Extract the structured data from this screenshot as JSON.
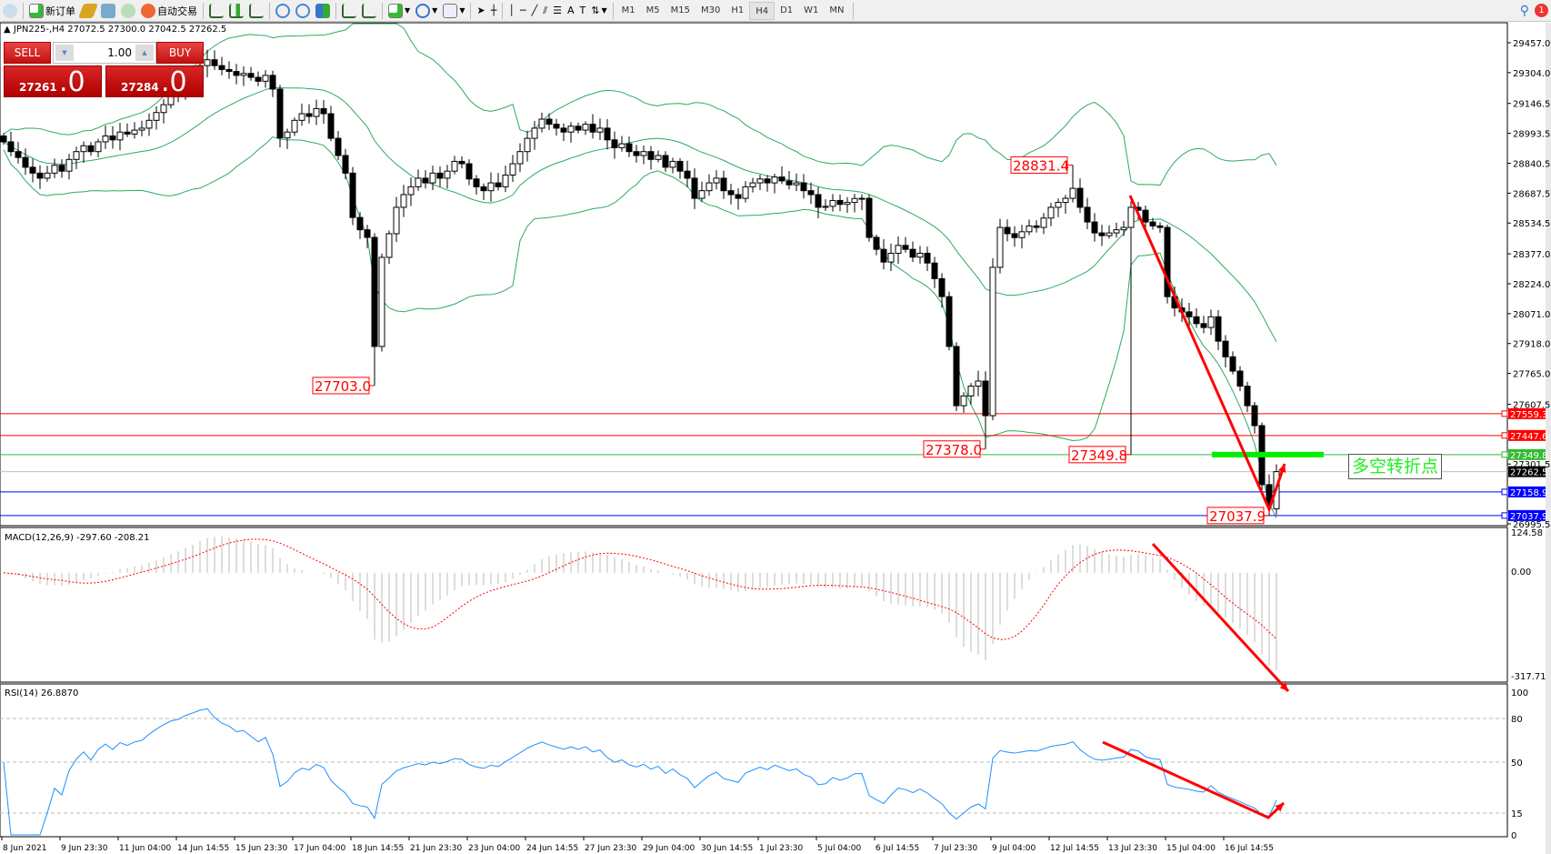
{
  "toolbar": {
    "new_order": "新订单",
    "auto_trading": "自动交易",
    "timeframes": [
      "M1",
      "M5",
      "M15",
      "M30",
      "H1",
      "H4",
      "D1",
      "W1",
      "MN"
    ],
    "active_timeframe": "H4",
    "notification_count": "1"
  },
  "chart_header": "JPN225-,H4  27072.5 27300.0 27042.5 27262.5",
  "trade_panel": {
    "sell_label": "SELL",
    "buy_label": "BUY",
    "lot": "1.00",
    "sell_price_main": "27261",
    "sell_price_frac": ".0",
    "buy_price_main": "27284",
    "buy_price_frac": ".0"
  },
  "colors": {
    "bull": "#ffffff",
    "bear": "#000000",
    "bands": "#2eaa5e",
    "rsi": "#1e90ff",
    "macd_hist": "#bbbbbb",
    "macd_signal": "#ff0000",
    "annotation": "#ff0000"
  },
  "chart_data": {
    "type": "candlestick",
    "symbol": "JPN225-",
    "timeframe": "H4",
    "last_bar": {
      "open": 27072.5,
      "high": 27300.0,
      "low": 27042.5,
      "close": 27262.5
    },
    "closes": [
      28950,
      28900,
      28870,
      28820,
      28790,
      28764,
      28790,
      28830,
      28800,
      28860,
      28900,
      28930,
      28900,
      28950,
      28980,
      28960,
      29000,
      28990,
      29010,
      29020,
      29060,
      29100,
      29140,
      29180,
      29200,
      29250,
      29290,
      29340,
      29370,
      29340,
      29320,
      29310,
      29290,
      29300,
      29280,
      29260,
      29290,
      29220,
      28970,
      29000,
      29060,
      29094,
      29080,
      29120,
      29094,
      28968,
      28880,
      28790,
      28563,
      28500,
      28461,
      27903,
      28359,
      28480,
      28615,
      28680,
      28720,
      28764,
      28740,
      28790,
      28764,
      28800,
      28850,
      28838,
      28760,
      28720,
      28700,
      28740,
      28720,
      28780,
      28838,
      28900,
      28968,
      29020,
      29066,
      29040,
      29020,
      29000,
      29030,
      29010,
      29040,
      29000,
      29020,
      28960,
      28920,
      28940,
      28900,
      28880,
      28900,
      28860,
      28880,
      28820,
      28850,
      28800,
      28764,
      28661,
      28700,
      28740,
      28764,
      28700,
      28680,
      28661,
      28720,
      28740,
      28760,
      28740,
      28770,
      28750,
      28730,
      28740,
      28700,
      28680,
      28615,
      28620,
      28650,
      28630,
      28640,
      28660,
      28661,
      28461,
      28400,
      28335,
      28380,
      28420,
      28400,
      28360,
      28380,
      28330,
      28250,
      28158,
      27903,
      27600,
      27650,
      27700,
      27726,
      27549,
      28308,
      28512,
      28480,
      28460,
      28490,
      28520,
      28512,
      28560,
      28615,
      28640,
      28661,
      28712,
      28615,
      28540,
      28484,
      28470,
      28484,
      28500,
      28512,
      28615,
      28600,
      28540,
      28520,
      28512,
      28158,
      28100,
      28080,
      28055,
      28020,
      28000,
      28055,
      27930,
      27850,
      27777,
      27700,
      27600,
      27498,
      27196,
      27093,
      27262.5
    ],
    "price_axis_ticks": [
      "29457.0",
      "29304.0",
      "29146.5",
      "28993.5",
      "28840.5",
      "28687.5",
      "28534.5",
      "28377.0",
      "28224.0",
      "28071.0",
      "27918.0",
      "27765.0",
      "27607.5",
      "27301.5",
      "26995.5"
    ],
    "time_axis_labels": [
      "8 Jun 2021",
      "9 Jun 23:30",
      "11 Jun 04:00",
      "14 Jun 14:55",
      "15 Jun 23:30",
      "17 Jun 04:00",
      "18 Jun 14:55",
      "21 Jun 23:30",
      "23 Jun 04:00",
      "24 Jun 14:55",
      "27 Jun 23:30",
      "29 Jun 04:00",
      "30 Jun 14:55",
      "1 Jul 23:30",
      "5 Jul 04:00",
      "6 Jul 14:55",
      "7 Jul 23:30",
      "9 Jul 04:00",
      "12 Jul 14:55",
      "13 Jul 23:30",
      "15 Jul 04:00",
      "16 Jul 14:55"
    ],
    "price_labels": [
      {
        "text": "27703.0",
        "value": 27703.0,
        "bar": 51
      },
      {
        "text": "27378.0",
        "value": 27378.0,
        "bar": 135
      },
      {
        "text": "28831.4",
        "value": 28831.4,
        "bar": 147
      },
      {
        "text": "27349.8",
        "value": 27349.8,
        "bar": 155
      },
      {
        "text": "27037.9",
        "value": 27037.9,
        "bar": 174
      }
    ],
    "horizontal_lines": [
      {
        "value": 27559.3,
        "text": "27559.3",
        "color": "#ff0000"
      },
      {
        "value": 27447.6,
        "text": "27447.6",
        "color": "#ff0000"
      },
      {
        "value": 27349.8,
        "text": "27349.8",
        "color": "#33bb33"
      },
      {
        "value": 27262.5,
        "text": "27262.5",
        "color": "#000000",
        "line": "#c0c0c0"
      },
      {
        "value": 27158.9,
        "text": "27158.9",
        "color": "#0000ff"
      },
      {
        "value": 27037.9,
        "text": "27037.9",
        "color": "#0000ff"
      }
    ],
    "turning_point_note": "多空转折点",
    "macd": {
      "label": "MACD(12,26,9) -297.60 -208.21",
      "ticks": [
        "124.58",
        "0.00",
        "-317.71"
      ],
      "range": [
        -317.71,
        124.58
      ]
    },
    "rsi": {
      "label": "RSI(14) 26.8870",
      "ticks": [
        "100",
        "80",
        "50",
        "15",
        "0"
      ],
      "levels": [
        80,
        50,
        15
      ]
    }
  }
}
